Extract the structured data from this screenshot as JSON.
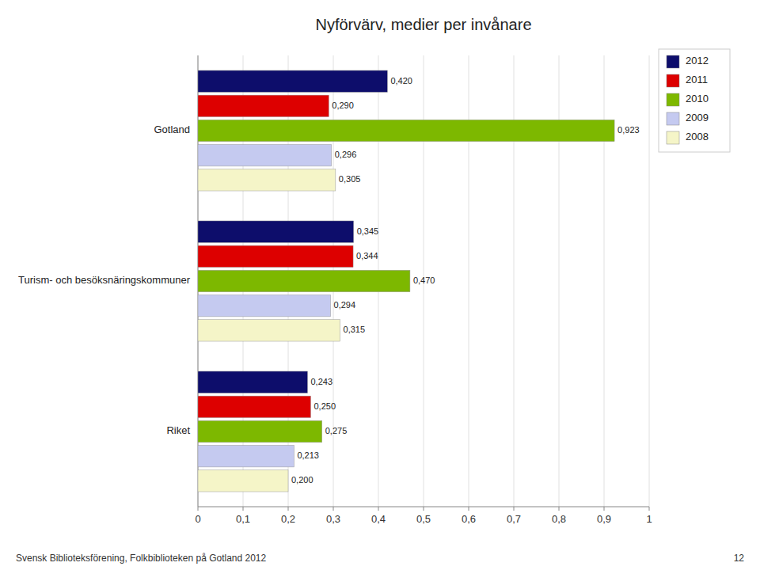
{
  "chart_data": {
    "type": "bar",
    "orientation": "horizontal",
    "title": "Nyförvärv, medier per invånare",
    "categories": [
      "Gotland",
      "Turism- och besöksnäringskommuner",
      "Riket"
    ],
    "series": [
      {
        "name": "2012",
        "color": "#0d0d6b",
        "values": [
          0.42,
          0.345,
          0.243
        ],
        "value_labels": [
          "0,420",
          "0,345",
          "0,243"
        ]
      },
      {
        "name": "2011",
        "color": "#dd0000",
        "values": [
          0.29,
          0.344,
          0.25
        ],
        "value_labels": [
          "0,290",
          "0,344",
          "0,250"
        ]
      },
      {
        "name": "2010",
        "color": "#7db800",
        "values": [
          0.923,
          0.47,
          0.275
        ],
        "value_labels": [
          "0,923",
          "0,470",
          "0,275"
        ]
      },
      {
        "name": "2009",
        "color": "#c5caf0",
        "values": [
          0.296,
          0.294,
          0.213
        ],
        "value_labels": [
          "0,296",
          "0,294",
          "0,213"
        ]
      },
      {
        "name": "2008",
        "color": "#f5f5c8",
        "values": [
          0.305,
          0.315,
          0.2
        ],
        "value_labels": [
          "0,305",
          "0,315",
          "0,200"
        ]
      }
    ],
    "xlim": [
      0,
      1.0
    ],
    "xticks": [
      0,
      {
        "value": 0.1,
        "label": "0,1"
      },
      {
        "value": 0.2,
        "label": "0,2"
      },
      {
        "value": 0.3,
        "label": "0,3"
      },
      {
        "value": 0.4,
        "label": "0,4"
      },
      {
        "value": 0.5,
        "label": "0,5"
      },
      {
        "value": 0.6,
        "label": "0,6"
      },
      {
        "value": 0.7,
        "label": "0,7"
      },
      {
        "value": 0.8,
        "label": "0,8"
      },
      {
        "value": 0.9,
        "label": "0,9"
      },
      1
    ],
    "grid": true,
    "legend": "upper right",
    "data_labels": true,
    "annotations": [
      "Svensk Biblioteksförening, Folkbiblioteken på Gotland 2012",
      "12"
    ]
  }
}
